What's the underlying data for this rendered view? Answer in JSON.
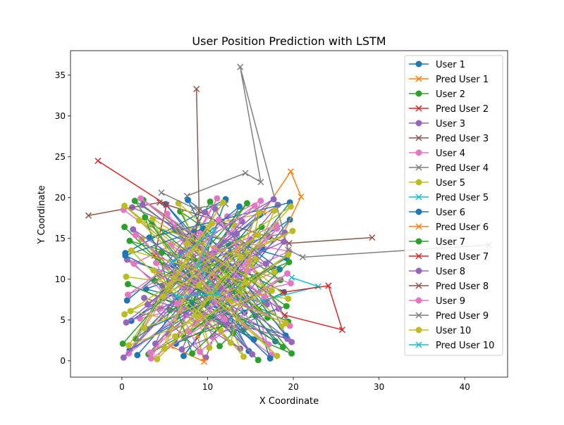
{
  "chart_data": {
    "type": "line",
    "title": "User Position Prediction with LSTM",
    "xlabel": "X Coordinate",
    "ylabel": "Y Coordinate",
    "xlim": [
      -6,
      45
    ],
    "ylim": [
      -2,
      38
    ],
    "xticks": [
      0,
      10,
      20,
      30,
      40
    ],
    "yticks": [
      0,
      5,
      10,
      15,
      20,
      25,
      30,
      35
    ],
    "grid": false,
    "legend_position": "top-right",
    "colors": [
      "#1f77b4",
      "#ff7f0e",
      "#2ca02c",
      "#d62728",
      "#9467bd",
      "#8c564b",
      "#e377c2",
      "#7f7f7f",
      "#bcbd22",
      "#17becf"
    ],
    "series": [
      {
        "name": "User 1",
        "marker": "o",
        "color": "#1f77b4",
        "points": [
          [
            0.4,
            13.2
          ],
          [
            12.1,
            19.8
          ],
          [
            6.3,
            2.1
          ],
          [
            18.9,
            8.4
          ],
          [
            3.5,
            16.7
          ],
          [
            14.8,
            1.2
          ],
          [
            9.6,
            11.5
          ],
          [
            1.1,
            4.9
          ],
          [
            19.6,
            17.3
          ],
          [
            7.2,
            0.6
          ],
          [
            16.4,
            13.9
          ],
          [
            2.8,
            8.8
          ],
          [
            11.7,
            6.3
          ],
          [
            17.9,
            2.4
          ],
          [
            5.1,
            19.2
          ],
          [
            13.3,
            9.7
          ],
          [
            0.9,
            1.3
          ],
          [
            19.2,
            12.6
          ],
          [
            8.4,
            15.8
          ],
          [
            15.6,
            5.5
          ]
        ]
      },
      {
        "name": "Pred User 1",
        "marker": "x",
        "color": "#ff7f0e",
        "points": [
          [
            16.5,
            18.2
          ],
          [
            19.7,
            23.2
          ],
          [
            20.9,
            20.1
          ],
          [
            18.7,
            15.3
          ]
        ]
      },
      {
        "name": "User 2",
        "marker": "o",
        "color": "#2ca02c",
        "points": [
          [
            0.3,
            16.4
          ],
          [
            15.9,
            0.1
          ],
          [
            4.2,
            12.3
          ],
          [
            19.4,
            4.8
          ],
          [
            10.3,
            19.5
          ],
          [
            1.6,
            2.7
          ],
          [
            17.2,
            15.2
          ],
          [
            7.9,
            6.6
          ],
          [
            12.6,
            13.1
          ],
          [
            3.1,
            0.8
          ],
          [
            18.5,
            9.9
          ],
          [
            6.8,
            18.3
          ],
          [
            14.1,
            3.7
          ],
          [
            0.7,
            9.4
          ],
          [
            19.8,
            0.9
          ],
          [
            9.2,
            14.6
          ],
          [
            2.5,
            19.7
          ],
          [
            16.7,
            7.2
          ],
          [
            11.4,
            1.8
          ],
          [
            5.9,
            10.7
          ]
        ]
      },
      {
        "name": "Pred User 2",
        "marker": "x",
        "color": "#d62728",
        "points": [
          [
            -2.8,
            24.5
          ],
          [
            5.2,
            19.1
          ],
          [
            3.8,
            12.9
          ],
          [
            10.5,
            10.2
          ]
        ]
      },
      {
        "name": "User 3",
        "marker": "o",
        "color": "#9467bd",
        "points": [
          [
            1.2,
            18.8
          ],
          [
            17.6,
            11.4
          ],
          [
            5.4,
            3.3
          ],
          [
            12.9,
            16.9
          ],
          [
            19.3,
            2.7
          ],
          [
            2.6,
            7.7
          ],
          [
            9.8,
            0.4
          ],
          [
            15.1,
            14.8
          ],
          [
            4.7,
            9.2
          ],
          [
            18.2,
            19.1
          ],
          [
            7.5,
            5.6
          ],
          [
            13.8,
            1.5
          ],
          [
            0.6,
            12.4
          ],
          [
            16.9,
            6.9
          ],
          [
            10.9,
            18.6
          ],
          [
            3.9,
            2.1
          ],
          [
            19.0,
            15.7
          ],
          [
            8.3,
            12.8
          ],
          [
            14.5,
            4.1
          ],
          [
            6.1,
            16.3
          ]
        ]
      },
      {
        "name": "Pred User 3",
        "marker": "x",
        "color": "#8c564b",
        "points": [
          [
            -3.9,
            17.8
          ],
          [
            4.4,
            19.4
          ],
          [
            19.5,
            14.4
          ],
          [
            29.2,
            15.1
          ]
        ]
      },
      {
        "name": "User 4",
        "marker": "o",
        "color": "#e377c2",
        "points": [
          [
            0.2,
            18.5
          ],
          [
            13.6,
            8.1
          ],
          [
            3.3,
            1.0
          ],
          [
            18.1,
            16.2
          ],
          [
            8.7,
            4.4
          ],
          [
            1.4,
            11.9
          ],
          [
            16.2,
            19.6
          ],
          [
            10.6,
            2.9
          ],
          [
            5.8,
            14.3
          ],
          [
            19.7,
            9.5
          ],
          [
            2.1,
            5.2
          ],
          [
            12.3,
            17.7
          ],
          [
            17.4,
            0.7
          ],
          [
            7.1,
            9.1
          ],
          [
            14.9,
            12.2
          ],
          [
            0.8,
            0.9
          ],
          [
            11.1,
            19.9
          ],
          [
            4.5,
            6.4
          ],
          [
            19.5,
            13.4
          ],
          [
            9.4,
            15.5
          ]
        ]
      },
      {
        "name": "Pred User 4",
        "marker": "x",
        "color": "#7f7f7f",
        "points": [
          [
            7.6,
            20.2
          ],
          [
            14.4,
            23.0
          ],
          [
            16.2,
            21.9
          ],
          [
            13.8,
            36.0
          ],
          [
            19.4,
            13.6
          ],
          [
            21.1,
            12.7
          ],
          [
            42.8,
            14.2
          ]
        ]
      },
      {
        "name": "User 5",
        "marker": "o",
        "color": "#bcbd22",
        "points": [
          [
            0.5,
            10.3
          ],
          [
            19.4,
            7.6
          ],
          [
            6.6,
            19.3
          ],
          [
            14.2,
            0.5
          ],
          [
            2.3,
            14.9
          ],
          [
            17.8,
            18.4
          ],
          [
            11.5,
            3.8
          ],
          [
            1.0,
            6.1
          ],
          [
            19.9,
            15.9
          ],
          [
            8.9,
            10.8
          ],
          [
            4.1,
            0.2
          ],
          [
            15.7,
            12.5
          ],
          [
            12.8,
            7.3
          ],
          [
            0.3,
            19.0
          ],
          [
            18.6,
            4.2
          ],
          [
            7.4,
            13.6
          ],
          [
            10.2,
            1.6
          ],
          [
            3.6,
            17.4
          ],
          [
            16.5,
            8.9
          ],
          [
            13.1,
            16.6
          ]
        ]
      },
      {
        "name": "Pred User 5",
        "marker": "x",
        "color": "#17becf",
        "points": [
          [
            19.8,
            10.2
          ],
          [
            22.9,
            9.1
          ],
          [
            16.4,
            7.4
          ],
          [
            13.1,
            7.6
          ]
        ]
      },
      {
        "name": "User 6",
        "marker": "o",
        "color": "#1f77b4",
        "points": [
          [
            1.8,
            0.7
          ],
          [
            16.1,
            17.9
          ],
          [
            4.9,
            8.5
          ],
          [
            19.1,
            3.1
          ],
          [
            9.5,
            16.2
          ],
          [
            0.4,
            12.9
          ],
          [
            14.3,
            5.9
          ],
          [
            7.7,
            19.7
          ],
          [
            18.4,
            11.2
          ],
          [
            2.9,
            3.9
          ],
          [
            12.5,
            14.1
          ],
          [
            17.3,
            0.3
          ],
          [
            6.0,
            11.7
          ],
          [
            11.2,
            8.2
          ],
          [
            19.6,
            19.4
          ],
          [
            3.2,
            15.1
          ],
          [
            15.4,
            2.6
          ],
          [
            8.1,
            6.8
          ],
          [
            13.7,
            18.9
          ],
          [
            0.6,
            7.4
          ]
        ]
      },
      {
        "name": "Pred User 6",
        "marker": "x",
        "color": "#ff7f0e",
        "points": [
          [
            5.7,
            1.8
          ],
          [
            9.6,
            -0.1
          ],
          [
            8.8,
            3.1
          ]
        ]
      },
      {
        "name": "User 7",
        "marker": "o",
        "color": "#2ca02c",
        "points": [
          [
            0.1,
            2.1
          ],
          [
            14.6,
            19.3
          ],
          [
            5.6,
            6.2
          ],
          [
            19.5,
            12.1
          ],
          [
            8.2,
            0.9
          ],
          [
            2.7,
            17.6
          ],
          [
            17.0,
            5.3
          ],
          [
            11.9,
            11.3
          ],
          [
            0.9,
            14.7
          ],
          [
            18.8,
            1.7
          ],
          [
            6.4,
            15.9
          ],
          [
            13.0,
            3.4
          ],
          [
            3.8,
            9.8
          ],
          [
            16.3,
            16.4
          ],
          [
            9.9,
            7.1
          ],
          [
            1.5,
            19.6
          ],
          [
            19.2,
            6.7
          ],
          [
            7.3,
            2.8
          ],
          [
            15.8,
            10.4
          ],
          [
            4.6,
            13.2
          ]
        ]
      },
      {
        "name": "Pred User 7",
        "marker": "x",
        "color": "#d62728",
        "points": [
          [
            18.8,
            8.4
          ],
          [
            24.1,
            9.2
          ],
          [
            25.7,
            3.8
          ],
          [
            19.0,
            5.6
          ]
        ]
      },
      {
        "name": "User 8",
        "marker": "o",
        "color": "#9467bd",
        "points": [
          [
            2.4,
            19.1
          ],
          [
            18.3,
            6.4
          ],
          [
            7.0,
            1.4
          ],
          [
            13.4,
            15.6
          ],
          [
            0.5,
            4.7
          ],
          [
            16.8,
            11.9
          ],
          [
            9.7,
            18.2
          ],
          [
            4.3,
            10.6
          ],
          [
            19.8,
            2.3
          ],
          [
            11.6,
            8.9
          ],
          [
            1.3,
            16.1
          ],
          [
            15.2,
            0.8
          ],
          [
            6.9,
            13.3
          ],
          [
            17.7,
            19.8
          ],
          [
            3.0,
            6.9
          ],
          [
            12.2,
            4.5
          ],
          [
            18.9,
            14.6
          ],
          [
            8.6,
            9.7
          ],
          [
            0.2,
            0.4
          ],
          [
            14.0,
            17.1
          ]
        ]
      },
      {
        "name": "Pred User 8",
        "marker": "x",
        "color": "#8c564b",
        "points": [
          [
            8.7,
            33.3
          ],
          [
            9.0,
            18.4
          ],
          [
            8.4,
            14.2
          ]
        ]
      },
      {
        "name": "User 9",
        "marker": "o",
        "color": "#e377c2",
        "points": [
          [
            1.6,
            15.4
          ],
          [
            17.1,
            2.0
          ],
          [
            5.3,
            18.0
          ],
          [
            12.0,
            5.1
          ],
          [
            19.3,
            10.7
          ],
          [
            3.4,
            0.3
          ],
          [
            10.8,
            13.8
          ],
          [
            15.5,
            19.0
          ],
          [
            0.7,
            8.1
          ],
          [
            18.0,
            16.7
          ],
          [
            7.8,
            3.6
          ],
          [
            14.7,
            11.0
          ],
          [
            2.2,
            19.9
          ],
          [
            16.6,
            7.9
          ],
          [
            9.1,
            1.1
          ],
          [
            4.0,
            12.0
          ],
          [
            19.6,
            4.3
          ],
          [
            11.3,
            17.3
          ],
          [
            6.5,
            7.0
          ],
          [
            13.5,
            13.7
          ]
        ]
      },
      {
        "name": "Pred User 9",
        "marker": "x",
        "color": "#7f7f7f",
        "points": [
          [
            4.6,
            20.6
          ],
          [
            8.4,
            18.7
          ],
          [
            12.1,
            19.2
          ]
        ]
      },
      {
        "name": "User 10",
        "marker": "o",
        "color": "#bcbd22",
        "points": [
          [
            0.3,
            5.7
          ],
          [
            19.7,
            18.9
          ],
          [
            6.2,
            3.0
          ],
          [
            13.9,
            12.7
          ],
          [
            2.0,
            17.2
          ],
          [
            18.1,
            0.6
          ],
          [
            9.0,
            9.3
          ],
          [
            15.9,
            15.4
          ],
          [
            4.8,
            7.9
          ],
          [
            11.8,
            19.4
          ],
          [
            0.8,
            1.9
          ],
          [
            17.5,
            8.6
          ],
          [
            7.6,
            14.4
          ],
          [
            19.1,
            4.6
          ],
          [
            3.7,
            11.1
          ],
          [
            12.7,
            2.2
          ],
          [
            16.0,
            18.1
          ],
          [
            8.8,
            5.4
          ],
          [
            1.1,
            13.5
          ],
          [
            14.4,
            9.6
          ],
          [
            19.4,
            13.0
          ],
          [
            5.0,
            1.5
          ],
          [
            10.5,
            16.8
          ],
          [
            2.6,
            4.0
          ],
          [
            17.8,
            10.9
          ]
        ]
      },
      {
        "name": "Pred User 10",
        "marker": "x",
        "color": "#17becf",
        "points": [
          [
            5.8,
            12.1
          ],
          [
            10.8,
            16.0
          ],
          [
            8.9,
            11.7
          ],
          [
            11.2,
            8.2
          ],
          [
            6.4,
            7.9
          ]
        ]
      }
    ]
  }
}
